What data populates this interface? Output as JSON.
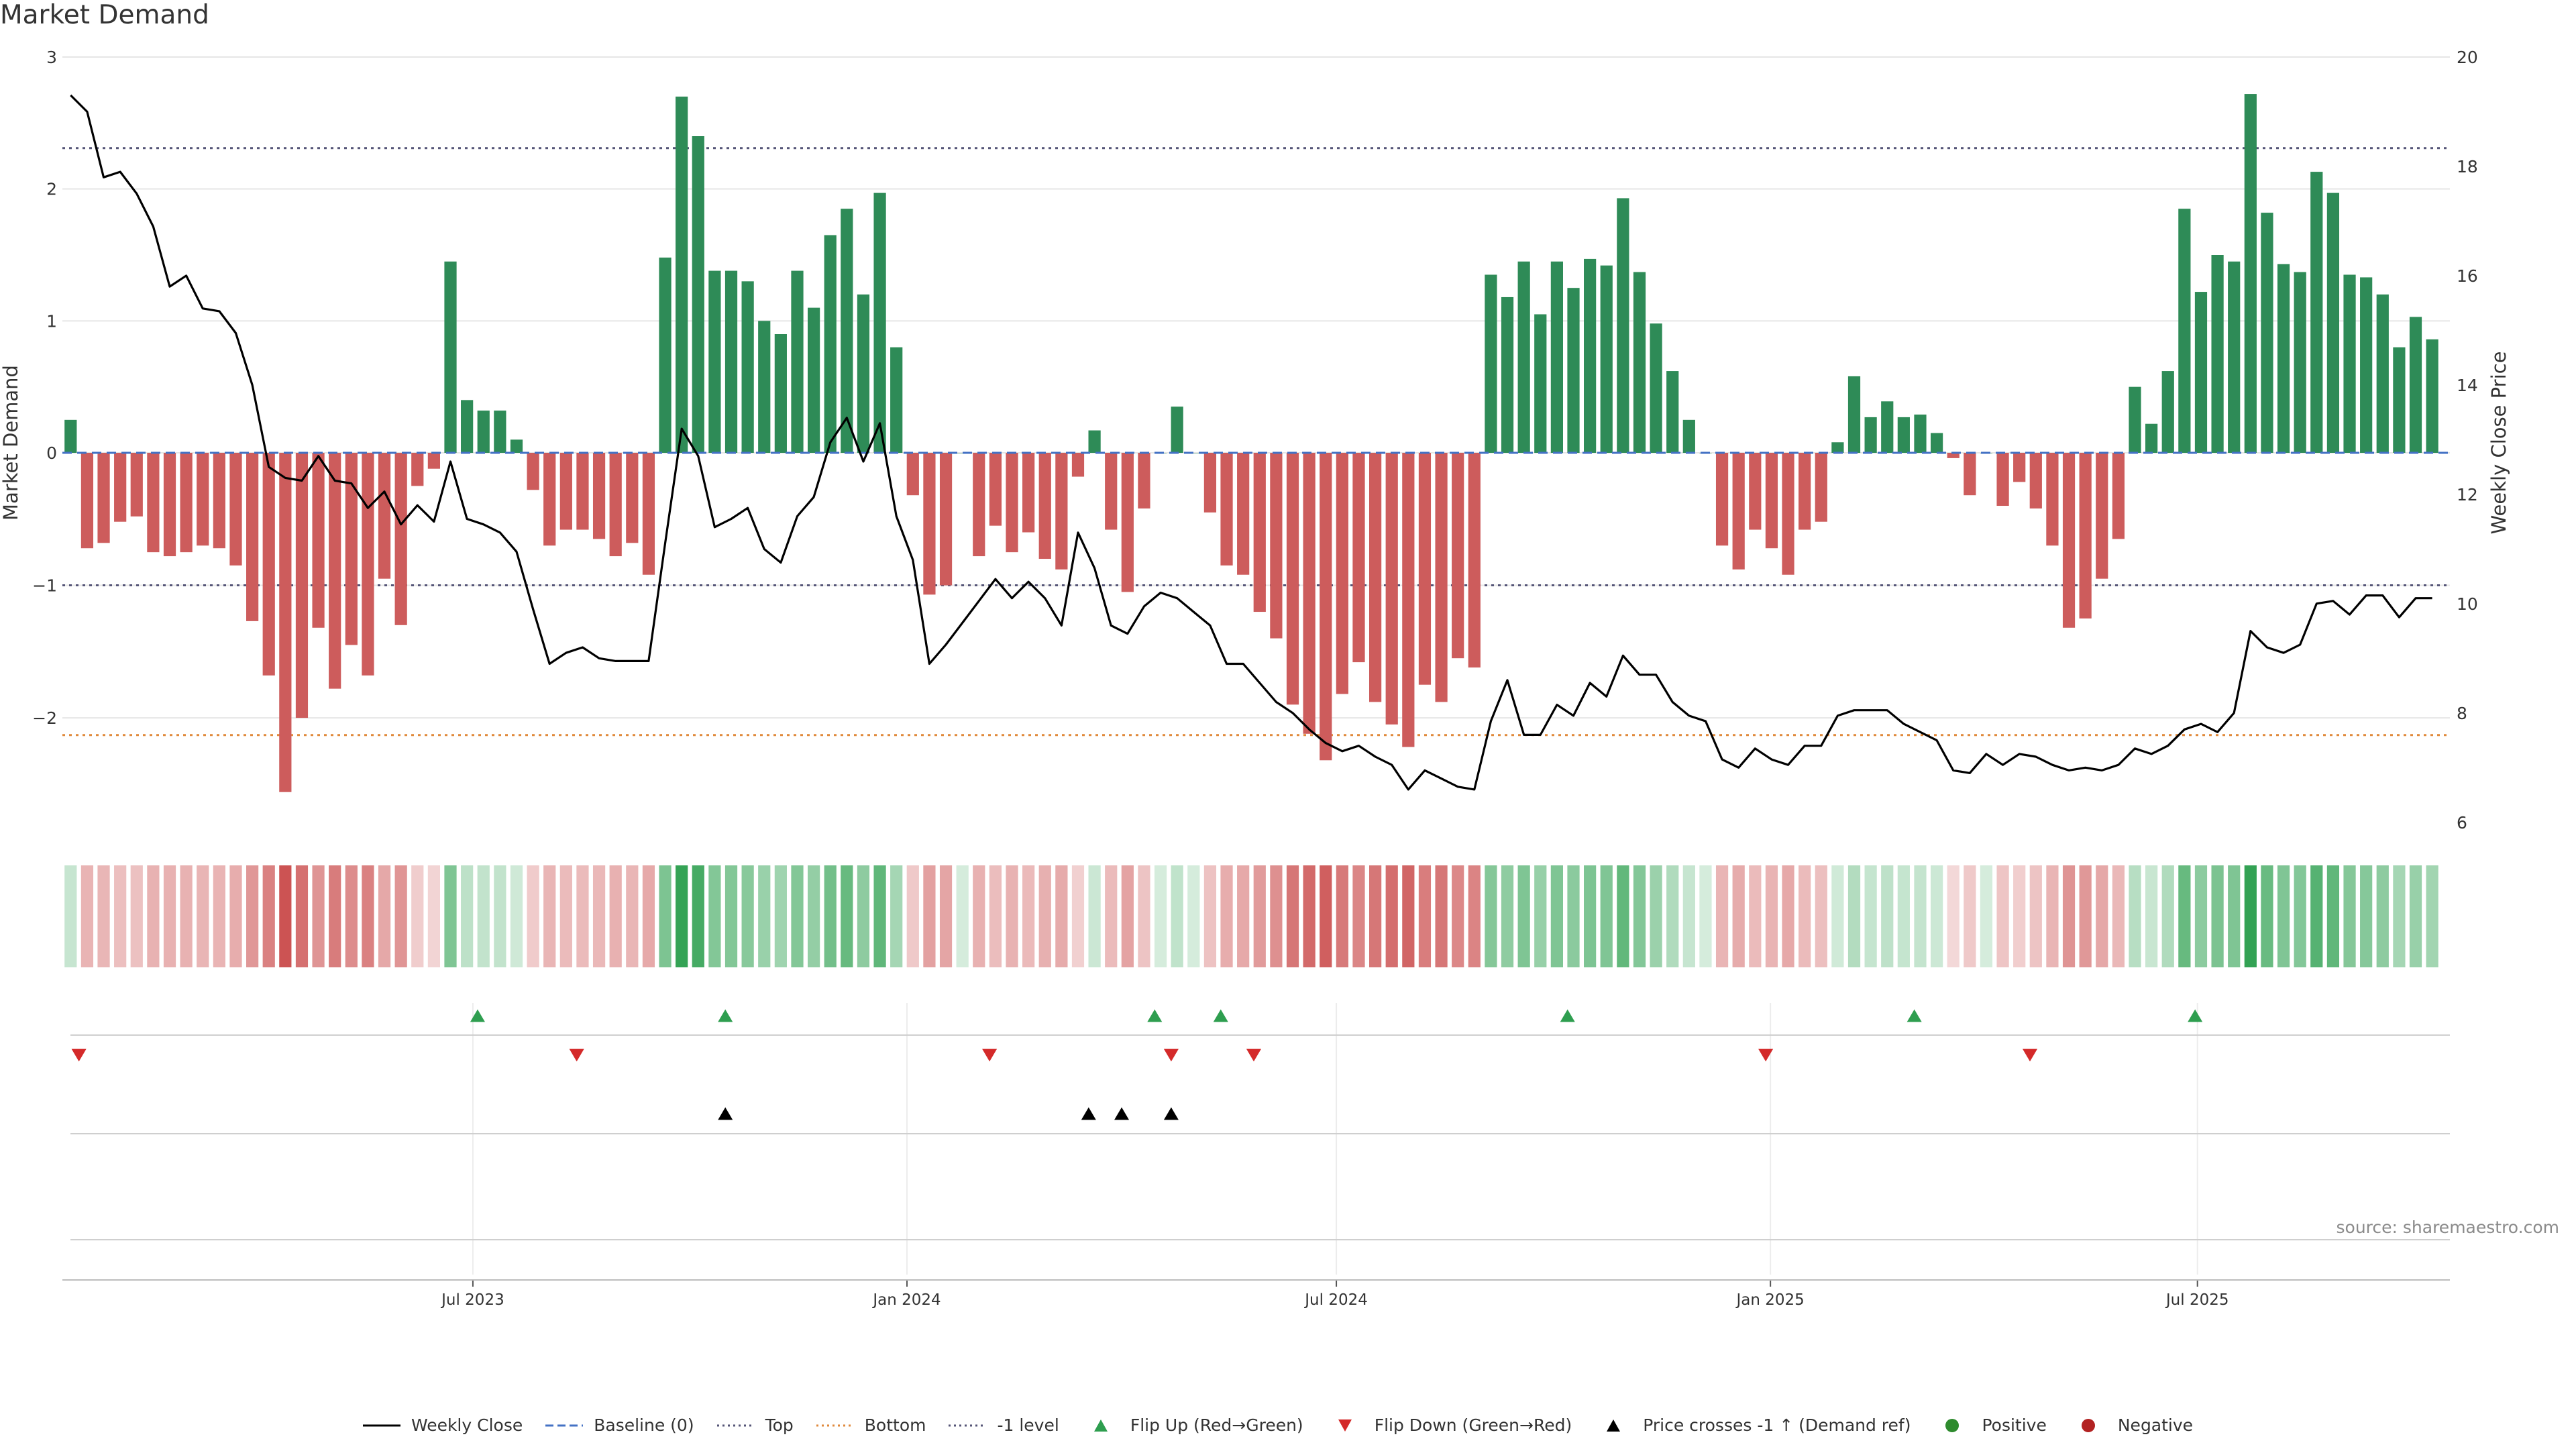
{
  "page_title": "Market Demand",
  "source_text": "source: sharemaestro.com",
  "colors": {
    "positive": "#2e8b57",
    "negative": "#cd5c5c",
    "price": "#000000",
    "baseline": "#4472c4",
    "top": "#555577",
    "bottom": "#e08a3c",
    "minus1": "#555577",
    "flip_up": "#2e9e4f",
    "flip_down": "#d42a2a",
    "cross": "#000000",
    "positive_dot": "#2e8b2e",
    "negative_dot": "#b22222"
  },
  "legend": [
    {
      "label": "Weekly Close",
      "kind": "line",
      "color": "#000000"
    },
    {
      "label": "Baseline (0)",
      "kind": "dash",
      "color": "#4472c4"
    },
    {
      "label": "Top",
      "kind": "dot",
      "color": "#555577"
    },
    {
      "label": "Bottom",
      "kind": "dot",
      "color": "#e08a3c"
    },
    {
      "label": "-1 level",
      "kind": "dot",
      "color": "#555577"
    },
    {
      "label": "Flip Up (Red→Green)",
      "kind": "tri-up",
      "color": "#2e9e4f"
    },
    {
      "label": "Flip Down (Green→Red)",
      "kind": "tri-down",
      "color": "#d42a2a"
    },
    {
      "label": "Price crosses -1 ↑ (Demand ref)",
      "kind": "tri-up",
      "color": "#000000"
    },
    {
      "label": "Positive",
      "kind": "circle",
      "color": "#2e8b2e"
    },
    {
      "label": "Negative",
      "kind": "circle",
      "color": "#b22222"
    }
  ],
  "chart_data": {
    "type": "bar",
    "title": "Market Demand",
    "xlabel": "",
    "ylabel": "Market Demand",
    "y2label": "Weekly Close Price",
    "ylim": [
      -2.85,
      3.0
    ],
    "y2lim": [
      5.85,
      20.0
    ],
    "yticks": [
      3,
      2,
      1,
      0,
      -1,
      -2
    ],
    "ytick_labels": [
      "3",
      "2",
      "1",
      "0",
      "−1",
      "−2"
    ],
    "y2ticks": [
      20,
      18,
      16,
      14,
      12,
      10,
      8,
      6
    ],
    "xlim": [
      "2023-01-08",
      "2025-10-16"
    ],
    "xticks": [
      {
        "date": "2023-07-01",
        "label": "Jul 2023"
      },
      {
        "date": "2024-01-01",
        "label": "Jan 2024"
      },
      {
        "date": "2024-07-01",
        "label": "Jul 2024"
      },
      {
        "date": "2025-01-01",
        "label": "Jan 2025"
      },
      {
        "date": "2025-07-01",
        "label": "Jul 2025"
      }
    ],
    "levels": {
      "baseline": 0,
      "top": 2.31,
      "bottom": -2.13,
      "minus1": -1
    },
    "series": [
      {
        "name": "Market Demand",
        "start_date": "2023-01-08",
        "values": [
          0.25,
          -0.72,
          -0.68,
          -0.52,
          -0.48,
          -0.75,
          -0.78,
          -0.75,
          -0.7,
          -0.72,
          -0.85,
          -1.27,
          -1.68,
          -2.56,
          -2.0,
          -1.32,
          -1.78,
          -1.45,
          -1.68,
          -0.95,
          -1.3,
          -0.25,
          -0.12,
          1.45,
          0.4,
          0.32,
          0.32,
          0.1,
          -0.28,
          -0.7,
          -0.58,
          -0.58,
          -0.65,
          -0.78,
          -0.68,
          -0.92,
          1.48,
          2.7,
          2.4,
          1.38,
          1.38,
          1.3,
          1.0,
          0.9,
          1.38,
          1.1,
          1.65,
          1.85,
          1.2,
          1.97,
          0.8,
          -0.32,
          -1.07,
          -1.0,
          0.0,
          -0.78,
          -0.55,
          -0.75,
          -0.6,
          -0.8,
          -0.88,
          -0.18,
          0.17,
          -0.58,
          -1.05,
          -0.42,
          0.0,
          0.35,
          0.0,
          -0.45,
          -0.85,
          -0.92,
          -1.2,
          -1.4,
          -1.9,
          -2.12,
          -2.32,
          -1.82,
          -1.58,
          -1.88,
          -2.05,
          -2.22,
          -1.75,
          -1.88,
          -1.55,
          -1.62,
          1.35,
          1.18,
          1.45,
          1.05,
          1.45,
          1.25,
          1.47,
          1.42,
          1.93,
          1.37,
          0.98,
          0.62,
          0.25,
          0.0,
          -0.7,
          -0.88,
          -0.58,
          -0.72,
          -0.92,
          -0.58,
          -0.52,
          0.08,
          0.58,
          0.27,
          0.39,
          0.27,
          0.29,
          0.15,
          -0.04,
          -0.32,
          0.0,
          -0.4,
          -0.22,
          -0.42,
          -0.7,
          -1.32,
          -1.25,
          -0.95,
          -0.65,
          0.5,
          0.22,
          0.62,
          1.85,
          1.22,
          1.5,
          1.45,
          2.72,
          1.82,
          1.43,
          1.37,
          2.13,
          1.97,
          1.35,
          1.33,
          1.2,
          0.8,
          1.03,
          0.86
        ]
      },
      {
        "name": "Weekly Close",
        "start_date": "2023-01-08",
        "values": [
          19.3,
          19.0,
          17.8,
          17.9,
          17.5,
          16.9,
          15.8,
          16.0,
          15.4,
          15.35,
          14.95,
          14.0,
          12.5,
          12.3,
          12.25,
          12.7,
          12.25,
          12.2,
          11.75,
          12.05,
          11.45,
          11.8,
          11.5,
          12.6,
          11.55,
          11.45,
          11.3,
          10.95,
          9.9,
          8.9,
          9.1,
          9.2,
          9.0,
          8.95,
          8.95,
          8.95,
          11.1,
          13.2,
          12.7,
          11.4,
          11.55,
          11.75,
          11.0,
          10.75,
          11.6,
          11.95,
          12.95,
          13.4,
          12.6,
          13.3,
          11.6,
          10.8,
          8.9,
          9.25,
          9.65,
          10.05,
          10.45,
          10.1,
          10.4,
          10.1,
          9.6,
          11.3,
          10.65,
          9.6,
          9.45,
          9.95,
          10.2,
          10.1,
          9.85,
          9.6,
          8.9,
          8.9,
          8.55,
          8.2,
          8.0,
          7.7,
          7.45,
          7.3,
          7.4,
          7.2,
          7.05,
          6.6,
          6.95,
          6.8,
          6.65,
          6.6,
          7.85,
          8.6,
          7.6,
          7.6,
          8.15,
          7.95,
          8.55,
          8.3,
          9.05,
          8.7,
          8.7,
          8.2,
          7.95,
          7.85,
          7.15,
          7.0,
          7.35,
          7.15,
          7.05,
          7.4,
          7.4,
          7.95,
          8.05,
          8.05,
          8.05,
          7.8,
          7.65,
          7.5,
          6.95,
          6.9,
          7.25,
          7.05,
          7.25,
          7.2,
          7.05,
          6.95,
          7.0,
          6.95,
          7.05,
          7.35,
          7.25,
          7.4,
          7.7,
          7.8,
          7.65,
          8.0,
          9.5,
          9.2,
          9.1,
          9.25,
          10.0,
          10.05,
          9.8,
          10.15,
          10.15,
          9.75,
          10.1,
          10.1
        ]
      }
    ],
    "heat_strip": {
      "note": "colour intensity strip of Market Demand by week",
      "values_ref": "Market Demand"
    },
    "events": {
      "flip_up": [
        "2023-07-03",
        "2023-10-16",
        "2024-04-15",
        "2024-05-13",
        "2024-10-07",
        "2025-03-03",
        "2025-06-30"
      ],
      "flip_down": [
        "2023-01-15",
        "2023-08-14",
        "2024-02-05",
        "2024-04-22",
        "2024-05-27",
        "2024-12-30",
        "2025-04-21"
      ],
      "price_cross_up": [
        "2023-10-16",
        "2024-03-18",
        "2024-04-01",
        "2024-04-22"
      ]
    }
  }
}
